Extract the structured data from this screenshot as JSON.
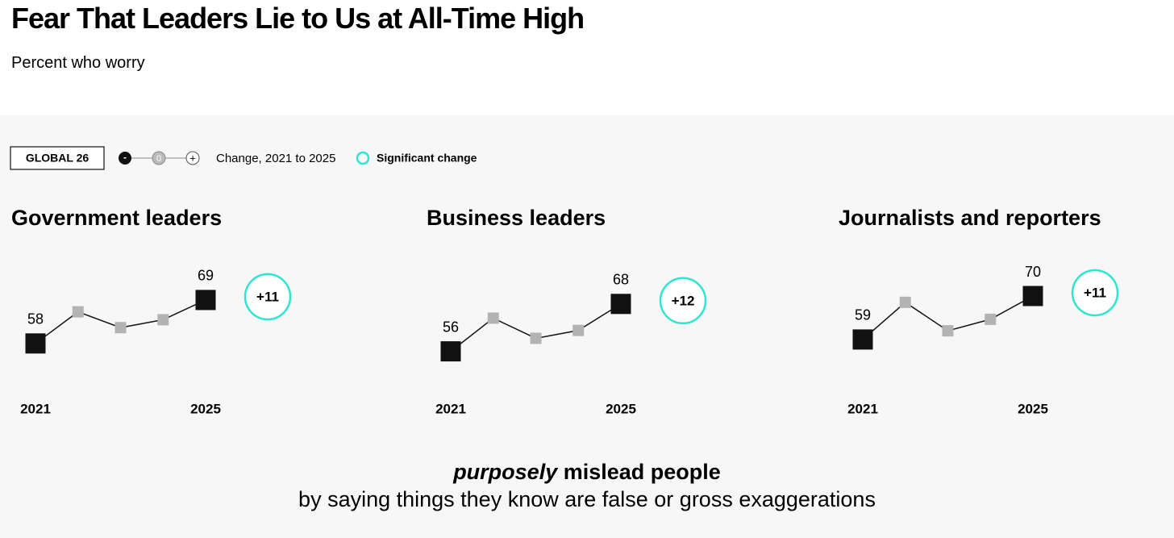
{
  "title": "Fear That Leaders Lie to Us at All-Time High",
  "subtitle": "Percent who worry",
  "legend": {
    "scope": "GLOBAL 26",
    "scale_minus": "-",
    "scale_zero": "0",
    "scale_plus": "+",
    "change_text": "Change, 2021 to 2025",
    "significant_text": "Significant change",
    "significant_color": "#2ee6cf"
  },
  "chart_data": [
    {
      "type": "line",
      "title": "Government leaders",
      "categories": [
        "2021",
        null,
        null,
        null,
        "2025"
      ],
      "values": [
        58,
        66,
        62,
        64,
        69
      ],
      "ylim": [
        50,
        75
      ],
      "color": "#111111",
      "middle_marker_color": "#b3b3b3",
      "change": "+11",
      "significant": true
    },
    {
      "type": "line",
      "title": "Business leaders",
      "categories": [
        "2021",
        null,
        null,
        null,
        "2025"
      ],
      "values": [
        56,
        64.4,
        59.3,
        61.3,
        68
      ],
      "ylim": [
        50,
        75
      ],
      "color": "#111111",
      "middle_marker_color": "#b3b3b3",
      "change": "+12",
      "significant": true
    },
    {
      "type": "line",
      "title": "Journalists and reporters",
      "categories": [
        "2021",
        null,
        null,
        null,
        "2025"
      ],
      "values": [
        59,
        68.4,
        61.2,
        64.1,
        70
      ],
      "ylim": [
        50,
        75
      ],
      "color": "#111111",
      "middle_marker_color": "#b3b3b3",
      "change": "+11",
      "significant": true
    }
  ],
  "footer": {
    "emphasis": "purposely",
    "headline": "mislead people",
    "detail": "by saying things they know are false or gross exaggerations"
  }
}
